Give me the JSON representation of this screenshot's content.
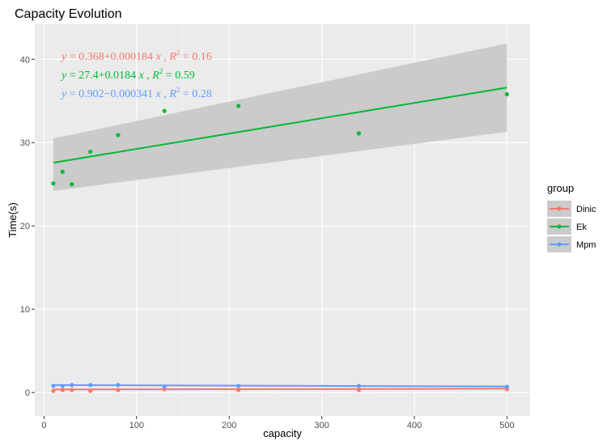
{
  "chart_data": {
    "type": "scatter",
    "title": "Capacity Evolution",
    "xlabel": "capacity",
    "ylabel": "Time(s)",
    "xlim": [
      -10,
      525
    ],
    "ylim": [
      -2.8,
      44.2
    ],
    "x_ticks": [
      0,
      100,
      200,
      300,
      400,
      500
    ],
    "y_ticks": [
      0,
      10,
      20,
      30,
      40
    ],
    "grid": true,
    "legend": {
      "title": "group",
      "position": "right"
    },
    "series": [
      {
        "name": "Dinic",
        "color": "#F8766D",
        "x": [
          10,
          20,
          30,
          50,
          80,
          130,
          210,
          340,
          500
        ],
        "y": [
          0.2,
          0.3,
          0.3,
          0.2,
          0.3,
          0.4,
          0.3,
          0.3,
          0.4
        ],
        "fit": {
          "intercept": 0.368,
          "slope": 0.000184,
          "r2": 0.16
        },
        "equation": {
          "a": "0.368",
          "op": "+",
          "b": "0.000184",
          "r2": "0.16"
        }
      },
      {
        "name": "Ek",
        "color": "#00BA38",
        "x": [
          10,
          20,
          30,
          50,
          80,
          130,
          210,
          340,
          500
        ],
        "y": [
          25.1,
          26.5,
          25.0,
          28.9,
          30.9,
          33.8,
          34.4,
          31.1,
          35.8
        ],
        "fit": {
          "intercept": 27.4,
          "slope": 0.0184,
          "r2": 0.59,
          "band_low": [
            30.5,
            31.3
          ],
          "band_high": [
            24.2,
            41.9
          ]
        },
        "equation": {
          "a": "27.4",
          "op": "+",
          "b": "0.0184",
          "r2": "0.59"
        }
      },
      {
        "name": "Mpm",
        "color": "#619CFF",
        "x": [
          10,
          20,
          30,
          50,
          80,
          130,
          210,
          340,
          500
        ],
        "y": [
          0.8,
          0.8,
          0.9,
          0.9,
          0.9,
          0.7,
          0.8,
          0.8,
          0.7
        ],
        "fit": {
          "intercept": 0.902,
          "slope": -0.000341,
          "r2": 0.28
        },
        "equation": {
          "a": "0.902",
          "op": "−",
          "b": "0.000341",
          "r2": "0.28"
        }
      }
    ]
  }
}
